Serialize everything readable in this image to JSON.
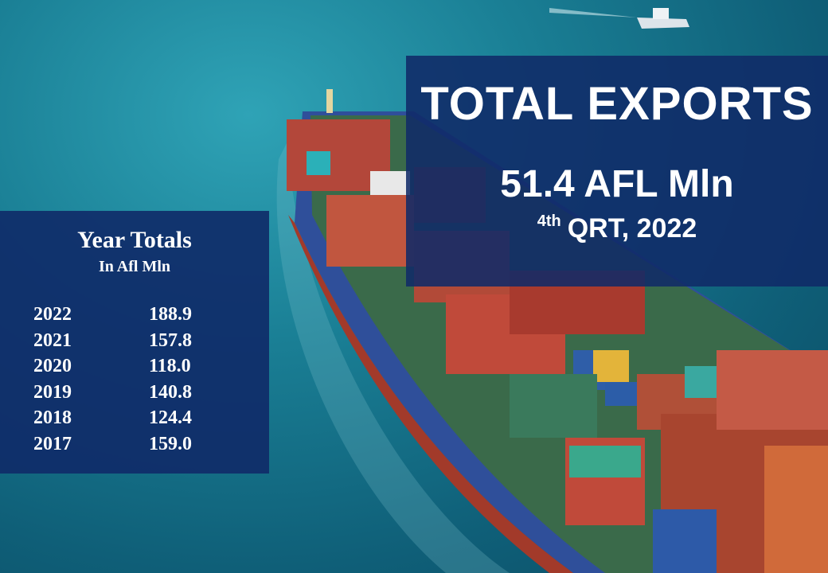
{
  "exports_panel": {
    "title": "TOTAL EXPORTS",
    "value": "51.4 AFL Mln",
    "period_ordinal": "4th",
    "period_rest": "QRT, 2022"
  },
  "year_totals": {
    "title": "Year Totals",
    "subtitle": "In Afl Mln",
    "rows": [
      {
        "year": "2022",
        "value": "188.9"
      },
      {
        "year": "2021",
        "value": "157.8"
      },
      {
        "year": "2020",
        "value": "118.0"
      },
      {
        "year": "2019",
        "value": "140.8"
      },
      {
        "year": "2018",
        "value": "124.4"
      },
      {
        "year": "2017",
        "value": "159.0"
      }
    ]
  },
  "colors": {
    "panel": "#102a68",
    "sea": "#1a7f95",
    "hull": "#2f4f9a"
  }
}
